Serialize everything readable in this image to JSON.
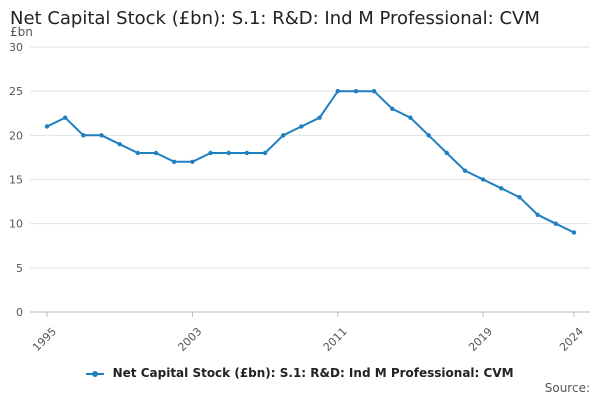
{
  "chart_data": {
    "type": "line",
    "title": "Net Capital Stock (£bn): S.1: R&D: Ind M Professional: CVM",
    "unit_label": "£bn",
    "xlabel": "",
    "ylabel": "",
    "ylim": [
      0,
      30
    ],
    "y_ticks": [
      0,
      5,
      10,
      15,
      20,
      25,
      30
    ],
    "x_ticks": [
      "1995",
      "2003",
      "2011",
      "2019",
      "2024"
    ],
    "x": [
      1995,
      1996,
      1997,
      1998,
      1999,
      2000,
      2001,
      2002,
      2003,
      2004,
      2005,
      2006,
      2007,
      2008,
      2009,
      2010,
      2011,
      2012,
      2013,
      2014,
      2015,
      2016,
      2017,
      2018,
      2019,
      2020,
      2021,
      2022,
      2023,
      2024
    ],
    "series": [
      {
        "name": "Net Capital Stock (£bn): S.1: R&D: Ind M Professional: CVM",
        "color": "#1f7fbf",
        "values": [
          21,
          22,
          20,
          20,
          19,
          18,
          18,
          17,
          17,
          18,
          18,
          18,
          18,
          20,
          21,
          22,
          25,
          25,
          25,
          23,
          22,
          20,
          18,
          16,
          15,
          14,
          13,
          11,
          10,
          9
        ]
      }
    ],
    "grid": true,
    "legend_position": "bottom",
    "source_label": "Source:"
  }
}
